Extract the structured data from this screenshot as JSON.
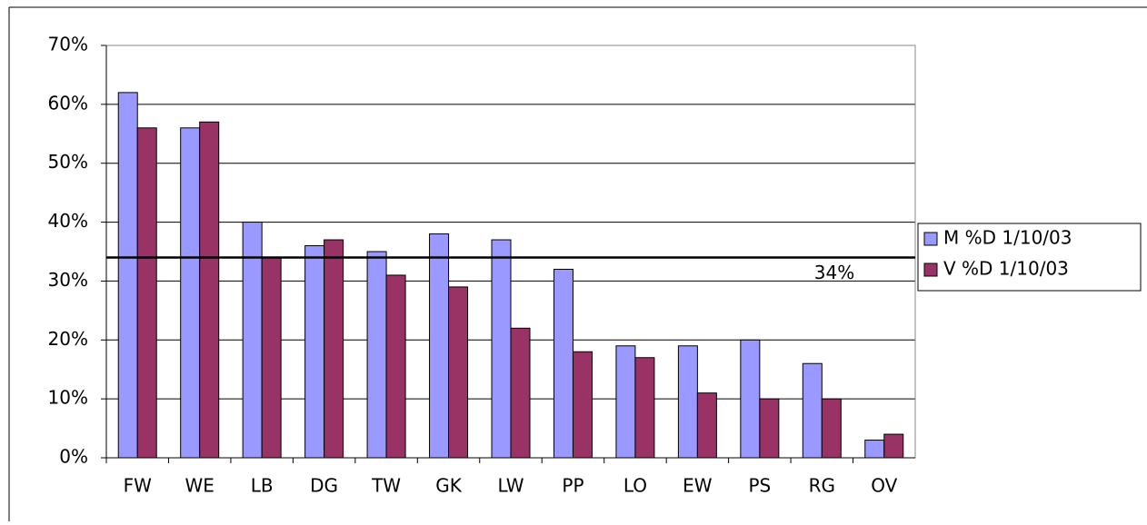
{
  "chart_data": {
    "type": "bar",
    "categories": [
      "FW",
      "WE",
      "LB",
      "DG",
      "TW",
      "GK",
      "LW",
      "PP",
      "LO",
      "EW",
      "PS",
      "RG",
      "OV"
    ],
    "series": [
      {
        "name": "M %D 1/10/03",
        "color": "#9999ff",
        "values": [
          62,
          56,
          40,
          36,
          35,
          38,
          37,
          32,
          19,
          19,
          20,
          16,
          3
        ]
      },
      {
        "name": "V %D 1/10/03",
        "color": "#993366",
        "values": [
          56,
          57,
          34,
          37,
          31,
          29,
          22,
          18,
          17,
          11,
          10,
          10,
          4
        ]
      }
    ],
    "ylim": [
      0,
      70
    ],
    "yticks": [
      {
        "value": 0,
        "label": "0%"
      },
      {
        "value": 10,
        "label": "10%"
      },
      {
        "value": 20,
        "label": "20%"
      },
      {
        "value": 30,
        "label": "30%"
      },
      {
        "value": 40,
        "label": "40%"
      },
      {
        "value": 50,
        "label": "50%"
      },
      {
        "value": 60,
        "label": "60%"
      },
      {
        "value": 70,
        "label": "70%"
      }
    ],
    "reference_line": {
      "value": 34,
      "label": "34%"
    },
    "grid": true,
    "legend": "right"
  }
}
